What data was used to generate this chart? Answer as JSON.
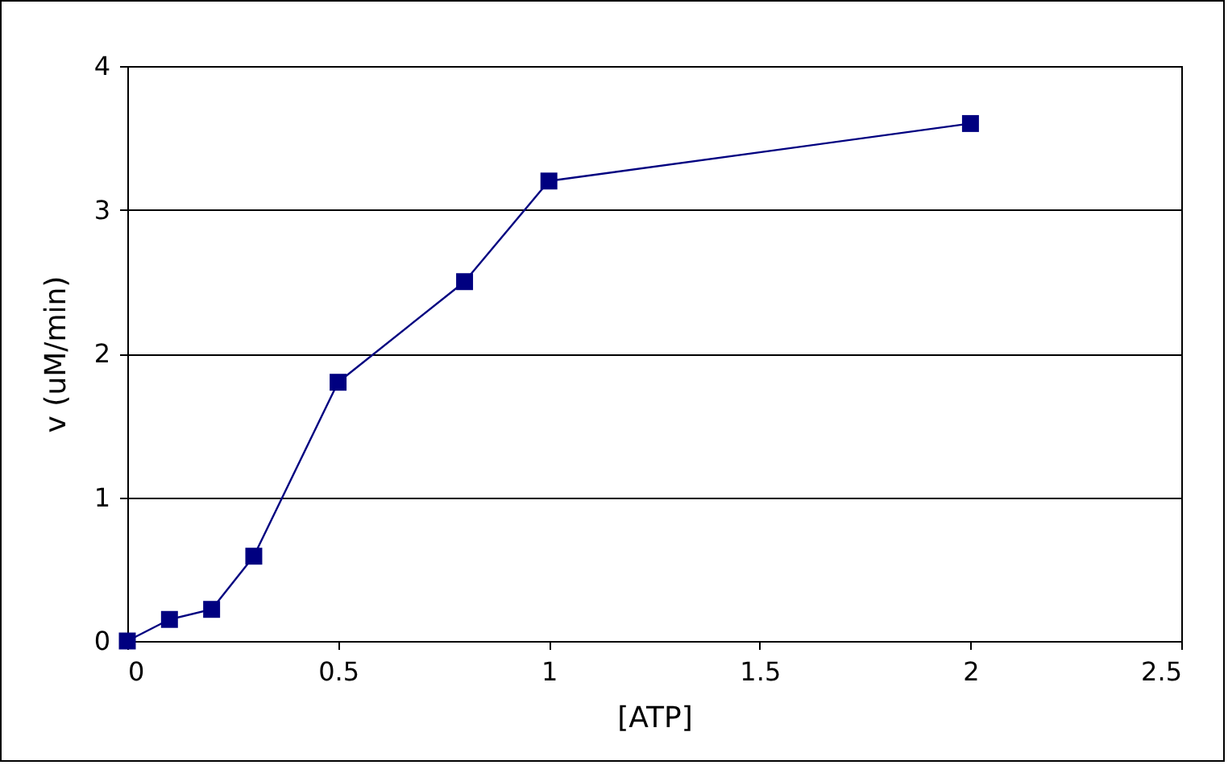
{
  "chart_data": {
    "type": "line",
    "xlabel": "[ATP]",
    "ylabel": "v (uM/min)",
    "x": [
      0,
      0.1,
      0.2,
      0.3,
      0.5,
      0.8,
      1,
      2
    ],
    "series": [
      {
        "color": "#000080",
        "values": [
          0,
          0.15,
          0.22,
          0.59,
          1.8,
          2.5,
          3.2,
          3.6
        ]
      }
    ],
    "xlim": [
      0,
      2.5
    ],
    "xticks": [
      0,
      0.5,
      1,
      1.5,
      2,
      2.5
    ],
    "ylim": [
      0,
      4
    ],
    "yticks": [
      0,
      1,
      2,
      3,
      4
    ],
    "grid": "y",
    "marker": "square",
    "line_style": "solid"
  }
}
